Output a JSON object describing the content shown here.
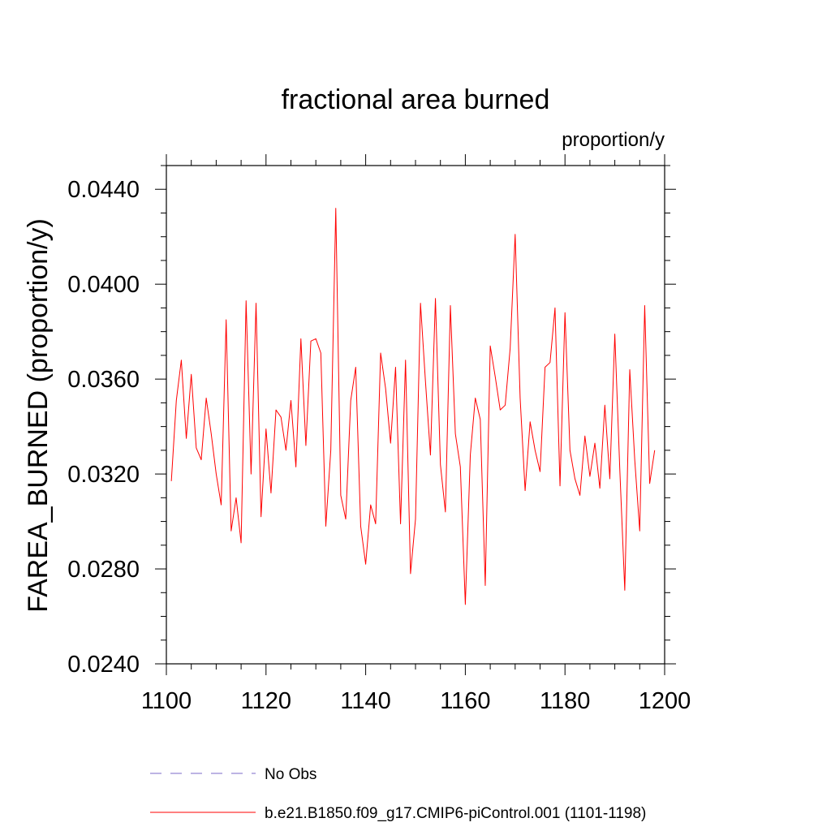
{
  "chart_data": {
    "type": "line",
    "title": "fractional area burned",
    "units_label": "proportion/y",
    "ylabel": "FAREA_BURNED  (proportion/y)",
    "xlabel": "",
    "xlim": [
      1100,
      1200
    ],
    "ylim": [
      0.024,
      0.045
    ],
    "x_ticks": [
      1100,
      1120,
      1140,
      1160,
      1180,
      1200
    ],
    "x_tick_labels": [
      "1100",
      "1120",
      "1140",
      "1160",
      "1180",
      "1200"
    ],
    "y_ticks": [
      0.024,
      0.028,
      0.032,
      0.036,
      0.04,
      0.044
    ],
    "y_tick_labels": [
      "0.0240",
      "0.0280",
      "0.0320",
      "0.0360",
      "0.0400",
      "0.0440"
    ],
    "grid": false,
    "legend_position": "bottom",
    "legend": [
      {
        "label": "No Obs",
        "color": "#7b68c8",
        "style": "dashed"
      },
      {
        "label": "b.e21.B1850.f09_g17.CMIP6-piControl.001 (1101-1198)",
        "color": "#ff0000",
        "style": "solid"
      }
    ],
    "series": [
      {
        "name": "b.e21.B1850.f09_g17.CMIP6-piControl.001 (1101-1198)",
        "color": "#ff0000",
        "x": [
          1101,
          1102,
          1103,
          1104,
          1105,
          1106,
          1107,
          1108,
          1109,
          1110,
          1111,
          1112,
          1113,
          1114,
          1115,
          1116,
          1117,
          1118,
          1119,
          1120,
          1121,
          1122,
          1123,
          1124,
          1125,
          1126,
          1127,
          1128,
          1129,
          1130,
          1131,
          1132,
          1133,
          1134,
          1135,
          1136,
          1137,
          1138,
          1139,
          1140,
          1141,
          1142,
          1143,
          1144,
          1145,
          1146,
          1147,
          1148,
          1149,
          1150,
          1151,
          1152,
          1153,
          1154,
          1155,
          1156,
          1157,
          1158,
          1159,
          1160,
          1161,
          1162,
          1163,
          1164,
          1165,
          1166,
          1167,
          1168,
          1169,
          1170,
          1171,
          1172,
          1173,
          1174,
          1175,
          1176,
          1177,
          1178,
          1179,
          1180,
          1181,
          1182,
          1183,
          1184,
          1185,
          1186,
          1187,
          1188,
          1189,
          1190,
          1191,
          1192,
          1193,
          1194,
          1195,
          1196,
          1197,
          1198
        ],
        "values": [
          0.0317,
          0.0351,
          0.0368,
          0.0335,
          0.0362,
          0.0331,
          0.0326,
          0.0352,
          0.0337,
          0.032,
          0.0307,
          0.0385,
          0.0296,
          0.031,
          0.0291,
          0.0393,
          0.032,
          0.0392,
          0.0302,
          0.0339,
          0.0312,
          0.0347,
          0.0344,
          0.033,
          0.0351,
          0.0323,
          0.0377,
          0.0332,
          0.0376,
          0.0377,
          0.0371,
          0.0298,
          0.033,
          0.0432,
          0.0311,
          0.0301,
          0.0351,
          0.0365,
          0.0298,
          0.0282,
          0.0307,
          0.0299,
          0.0371,
          0.0356,
          0.0333,
          0.0365,
          0.0299,
          0.0368,
          0.0278,
          0.0301,
          0.0392,
          0.0359,
          0.0328,
          0.0394,
          0.0324,
          0.0304,
          0.0391,
          0.0337,
          0.0323,
          0.0265,
          0.0328,
          0.0352,
          0.0343,
          0.0273,
          0.0374,
          0.0361,
          0.0347,
          0.0349,
          0.0373,
          0.0421,
          0.0352,
          0.0313,
          0.0342,
          0.033,
          0.0321,
          0.0365,
          0.0367,
          0.039,
          0.0315,
          0.0388,
          0.033,
          0.0318,
          0.0311,
          0.0336,
          0.0319,
          0.0333,
          0.0314,
          0.0349,
          0.0318,
          0.0379,
          0.0322,
          0.0271,
          0.0364,
          0.0326,
          0.0296,
          0.0391,
          0.0316,
          0.033
        ]
      }
    ]
  }
}
